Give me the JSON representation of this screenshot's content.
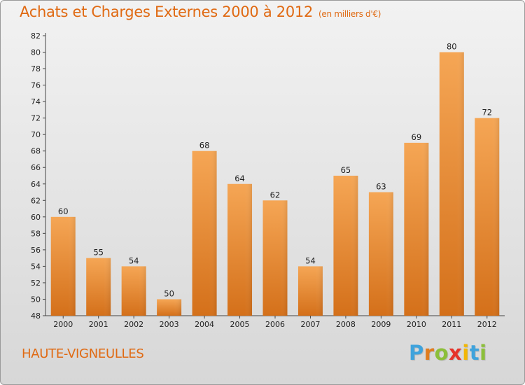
{
  "chart_data": {
    "type": "bar",
    "title": "Achats et Charges Externes 2000 à 2012",
    "unit_note": "(en milliers d'€)",
    "categories": [
      "2000",
      "2001",
      "2002",
      "2003",
      "2004",
      "2005",
      "2006",
      "2007",
      "2008",
      "2009",
      "2010",
      "2011",
      "2012"
    ],
    "values": [
      60,
      55,
      54,
      50,
      68,
      64,
      62,
      54,
      65,
      63,
      69,
      80,
      72
    ],
    "ylim": [
      48,
      82
    ],
    "yticks": [
      48,
      50,
      52,
      54,
      56,
      58,
      60,
      62,
      64,
      66,
      68,
      70,
      72,
      74,
      76,
      78,
      80,
      82
    ],
    "grid": false,
    "legend": "none",
    "bar_color_top": "#f5a655",
    "bar_color_bottom": "#d4701a"
  },
  "location": "HAUTE-VIGNEULLES",
  "brand": {
    "letters": [
      "P",
      "r",
      "o",
      "x",
      "i",
      "t",
      "i"
    ],
    "colors": [
      "#3fa3dc",
      "#e07c1e",
      "#8cbf3a",
      "#e6332a",
      "#f2b705",
      "#3fa3dc",
      "#8cbf3a"
    ]
  }
}
